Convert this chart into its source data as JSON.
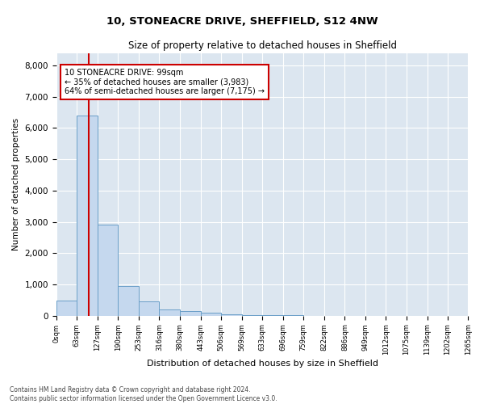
{
  "title": "10, STONEACRE DRIVE, SHEFFIELD, S12 4NW",
  "subtitle": "Size of property relative to detached houses in Sheffield",
  "xlabel": "Distribution of detached houses by size in Sheffield",
  "ylabel": "Number of detached properties",
  "bar_color": "#c5d8ee",
  "bar_edge_color": "#6a9fc8",
  "background_color": "#dce6f0",
  "grid_color": "white",
  "bin_edges": [
    0,
    63,
    127,
    190,
    253,
    316,
    380,
    443,
    506,
    569,
    633,
    696,
    759,
    822,
    886,
    949,
    1012,
    1075,
    1139,
    1202,
    1265
  ],
  "bar_heights": [
    490,
    6400,
    2900,
    950,
    450,
    200,
    150,
    95,
    50,
    30,
    15,
    8,
    5,
    3,
    2,
    1,
    0,
    0,
    0,
    0
  ],
  "property_size": 99,
  "red_line_color": "#cc0000",
  "annotation_line1": "10 STONEACRE DRIVE: 99sqm",
  "annotation_line2": "← 35% of detached houses are smaller (3,983)",
  "annotation_line3": "64% of semi-detached houses are larger (7,175) →",
  "annotation_box_color": "#cc0000",
  "ylim": [
    0,
    8400
  ],
  "yticks": [
    0,
    1000,
    2000,
    3000,
    4000,
    5000,
    6000,
    7000,
    8000
  ],
  "footer_line1": "Contains HM Land Registry data © Crown copyright and database right 2024.",
  "footer_line2": "Contains public sector information licensed under the Open Government Licence v3.0."
}
